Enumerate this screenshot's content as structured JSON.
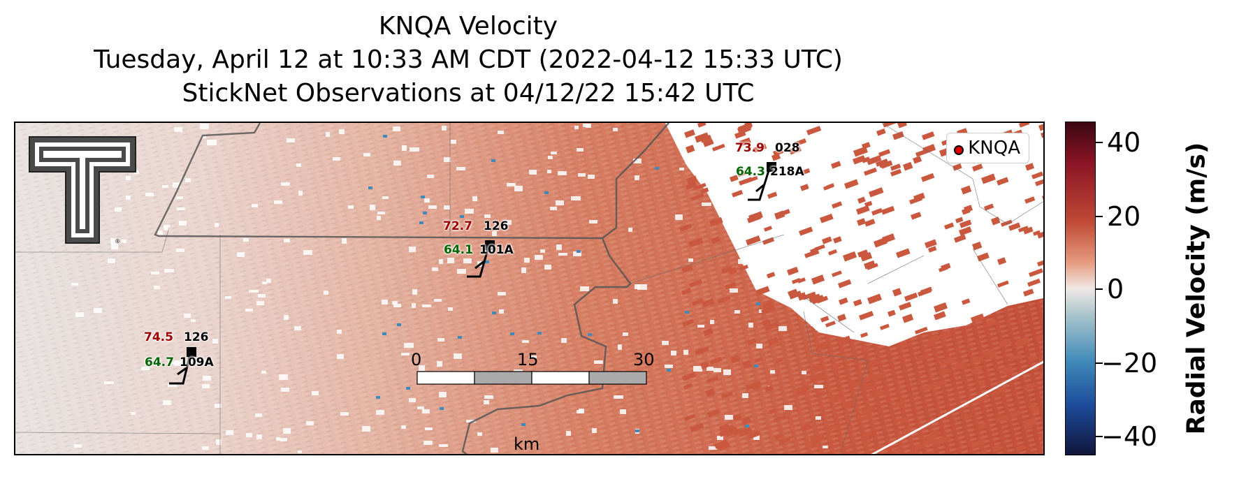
{
  "title": {
    "line1": "KNQA Velocity",
    "line2": "Tuesday, April 12 at 10:33 AM CDT (2022-04-12 15:33 UTC)",
    "line3": "StickNet Observations at 04/12/22 15:42 UTC"
  },
  "legend": {
    "label": "KNQA",
    "marker_color": "#e00000"
  },
  "stations": [
    {
      "temp": "73.9",
      "dewpoint": "64.3",
      "pressure": "028",
      "id": "218A"
    },
    {
      "temp": "72.7",
      "dewpoint": "64.1",
      "pressure": "126",
      "id": "101A"
    },
    {
      "temp": "74.5",
      "dewpoint": "64.7",
      "pressure": "126",
      "id": "109A"
    }
  ],
  "scale_bar": {
    "labels": [
      "0",
      "15",
      "30"
    ],
    "unit": "km"
  },
  "colorbar": {
    "label": "Radial Velocity (m/s)",
    "ticks": [
      "40",
      "20",
      "0",
      "−20",
      "−40"
    ],
    "range": [
      -45,
      45
    ]
  },
  "logo": {
    "name": "texas-tech-double-t-logo",
    "text": "T"
  },
  "colors": {
    "positive": "#c9583f",
    "negative": "#3f8ab8",
    "neutral": "#ece6e3",
    "temp": "#a00000",
    "dewpoint": "#006600"
  }
}
